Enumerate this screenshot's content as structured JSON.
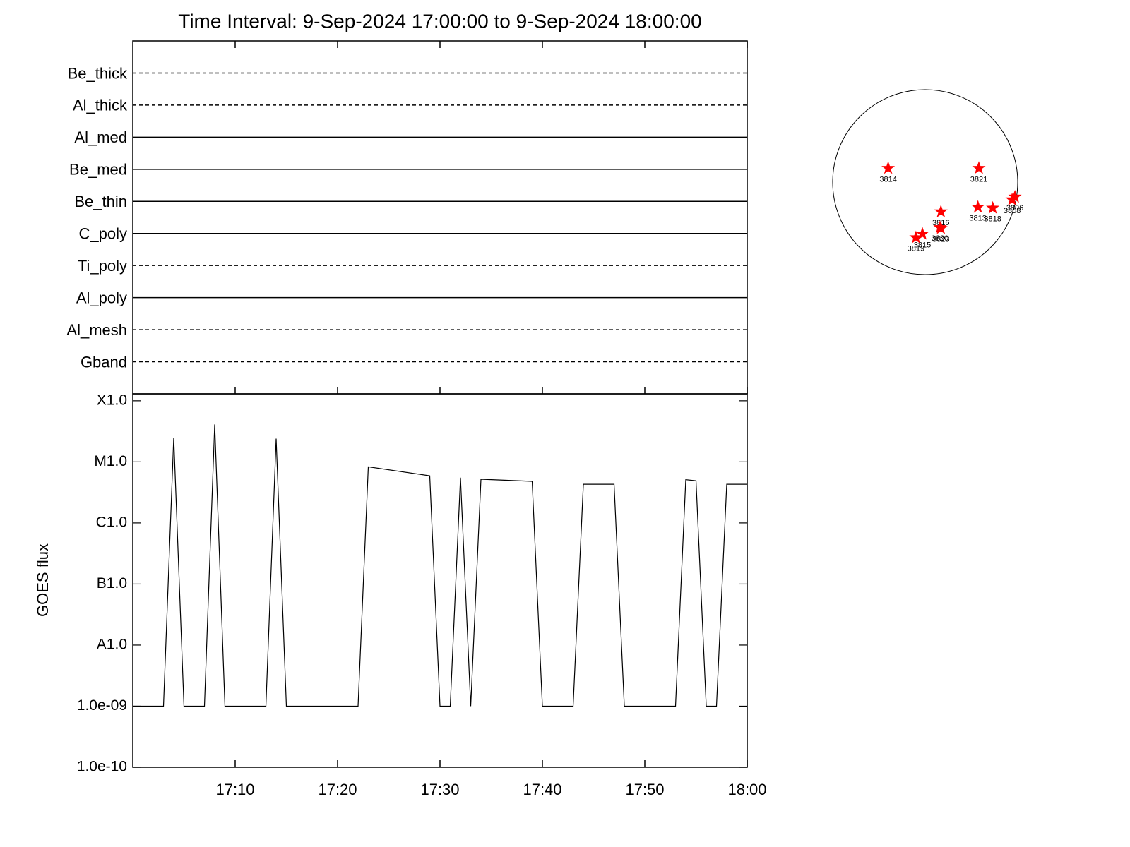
{
  "chart_data": [
    {
      "type": "timeline",
      "title": "Time Interval:  9-Sep-2024 17:00:00 to  9-Sep-2024 18:00:00",
      "series": [
        {
          "name": "Be_thick",
          "style": "dashed"
        },
        {
          "name": "Al_thick",
          "style": "dashed"
        },
        {
          "name": "Al_med",
          "style": "solid"
        },
        {
          "name": "Be_med",
          "style": "solid"
        },
        {
          "name": "Be_thin",
          "style": "solid"
        },
        {
          "name": "C_poly",
          "style": "solid"
        },
        {
          "name": "Ti_poly",
          "style": "dashed"
        },
        {
          "name": "Al_poly",
          "style": "solid"
        },
        {
          "name": "Al_mesh",
          "style": "dashed"
        },
        {
          "name": "Gband",
          "style": "dashed"
        }
      ]
    },
    {
      "type": "line",
      "ylabel": "GOES flux",
      "color": "#000000",
      "log_y": true,
      "x": [
        0,
        3,
        4,
        5,
        7,
        8,
        9,
        13,
        14,
        15,
        22,
        23,
        29,
        30,
        31,
        32,
        33,
        34,
        39,
        40,
        43,
        44,
        47,
        48,
        53,
        54,
        55,
        56,
        57,
        58,
        60
      ],
      "values": [
        1e-09,
        1e-09,
        2.5e-05,
        1e-09,
        1e-09,
        4.1e-05,
        1e-09,
        1e-09,
        2.4e-05,
        1e-09,
        1e-09,
        8.3e-06,
        5.9e-06,
        1e-09,
        1e-09,
        5.5e-06,
        1e-09,
        5.2e-06,
        4.8e-06,
        1e-09,
        1e-09,
        4.3e-06,
        4.3e-06,
        1e-09,
        1e-09,
        5.1e-06,
        4.9e-06,
        1e-09,
        1e-09,
        4.3e-06,
        4.3e-06
      ],
      "xlim": [
        0,
        60
      ],
      "xticks": [
        {
          "value": 10,
          "label": "17:10"
        },
        {
          "value": 20,
          "label": "17:20"
        },
        {
          "value": 30,
          "label": "17:30"
        },
        {
          "value": 40,
          "label": "17:40"
        },
        {
          "value": 50,
          "label": "17:50"
        },
        {
          "value": 60,
          "label": "18:00"
        }
      ],
      "ylim": [
        1e-10,
        0.00013
      ],
      "yticks": [
        {
          "value": 1e-10,
          "label": "1.0e-10"
        },
        {
          "value": 1e-09,
          "label": "1.0e-09"
        },
        {
          "value": 1e-08,
          "label": "A1.0"
        },
        {
          "value": 1e-07,
          "label": "B1.0"
        },
        {
          "value": 1e-06,
          "label": "C1.0"
        },
        {
          "value": 1e-05,
          "label": "M1.0"
        },
        {
          "value": 0.0001,
          "label": "X1.0"
        }
      ]
    },
    {
      "type": "scatter",
      "color": "#ff0000",
      "labels": [
        "3814",
        "3821",
        "3816",
        "3813",
        "3818",
        "3806",
        "3808",
        "3815",
        "3819",
        "3820",
        "3823"
      ],
      "x": [
        -0.4,
        0.58,
        0.17,
        0.57,
        0.73,
        0.97,
        0.94,
        -0.03,
        -0.1,
        0.16,
        0.17
      ],
      "y": [
        0.15,
        0.15,
        -0.32,
        -0.27,
        -0.28,
        -0.16,
        -0.19,
        -0.56,
        -0.6,
        -0.49,
        -0.5
      ]
    }
  ]
}
